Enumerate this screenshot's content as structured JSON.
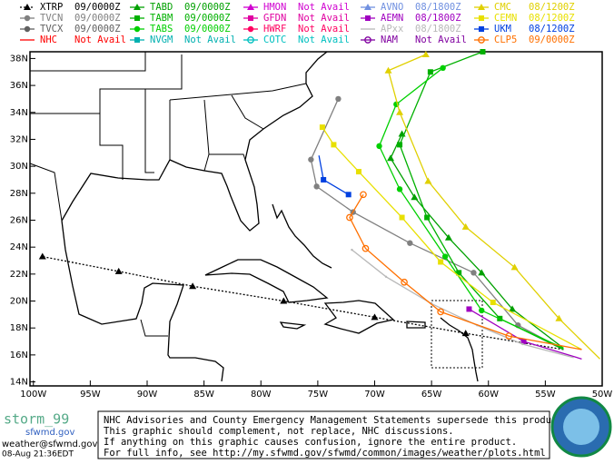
{
  "map": {
    "xlim": [
      -100.3,
      -50
    ],
    "ylim": [
      13.7,
      38.5
    ],
    "xticks": [
      {
        "value": -100,
        "label": "100W"
      },
      {
        "value": -95,
        "label": "95W"
      },
      {
        "value": -90,
        "label": "90W"
      },
      {
        "value": -85,
        "label": "85W"
      },
      {
        "value": -80,
        "label": "80W"
      },
      {
        "value": -75,
        "label": "75W"
      },
      {
        "value": -70,
        "label": "70W"
      },
      {
        "value": -65,
        "label": "65W"
      },
      {
        "value": -60,
        "label": "60W"
      },
      {
        "value": -55,
        "label": "55W"
      },
      {
        "value": -50,
        "label": "50W"
      }
    ],
    "yticks": [
      {
        "value": 14,
        "label": "14N"
      },
      {
        "value": 16,
        "label": "16N"
      },
      {
        "value": 18,
        "label": "18N"
      },
      {
        "value": 20,
        "label": "20N"
      },
      {
        "value": 22,
        "label": "22N"
      },
      {
        "value": 24,
        "label": "24N"
      },
      {
        "value": 26,
        "label": "26N"
      },
      {
        "value": 28,
        "label": "28N"
      },
      {
        "value": 30,
        "label": "30N"
      },
      {
        "value": 32,
        "label": "32N"
      },
      {
        "value": 34,
        "label": "34N"
      },
      {
        "value": 36,
        "label": "36N"
      },
      {
        "value": 38,
        "label": "38N"
      }
    ],
    "legend": [
      {
        "name": "XTRP",
        "status": "09/0000Z",
        "color": "#000000",
        "marker": "triangle",
        "style": "dotted",
        "lon": [
          -53.4,
          -62,
          -70,
          -78,
          -86,
          -92.5,
          -99.2
        ],
        "lat": [
          16.4,
          17.6,
          18.8,
          20,
          21.1,
          22.2,
          23.3
        ]
      },
      {
        "name": "TVCN",
        "status": "09/0000Z",
        "color": "#808080",
        "marker": "circle",
        "style": "solid",
        "lon": [
          -53.4,
          -57.4,
          -61.3,
          -66.9,
          -71.9,
          -75.1,
          -75.6,
          -73.2
        ],
        "lat": [
          16.4,
          18.2,
          22.1,
          24.3,
          26.6,
          28.5,
          30.5,
          35
        ]
      },
      {
        "name": "TVCX",
        "status": "09/0000Z",
        "color": "#606060",
        "marker": "circle",
        "style": "solid"
      },
      {
        "name": "NHC",
        "status": "Not Avail",
        "color": "#ff0000",
        "marker": "none",
        "style": "solid"
      },
      {
        "name": "TABD",
        "status": "09/0000Z",
        "color": "#00a000",
        "marker": "triangle",
        "style": "solid",
        "lon": [
          -53.4,
          -57.9,
          -60.6,
          -63.5,
          -66.5,
          -68.6,
          -67.6
        ],
        "lat": [
          16.5,
          19.4,
          22.1,
          24.7,
          27.7,
          30.6,
          32.4
        ]
      },
      {
        "name": "TABM",
        "status": "09/0000Z",
        "color": "#00b000",
        "marker": "square",
        "style": "solid",
        "lon": [
          -53.4,
          -59,
          -62.6,
          -65.4,
          -67.8,
          -65.1,
          -60.5
        ],
        "lat": [
          16.4,
          18.7,
          22.1,
          26.2,
          31.6,
          37,
          38.5
        ]
      },
      {
        "name": "TABS",
        "status": "09/0000Z",
        "color": "#00d000",
        "marker": "circle",
        "style": "solid",
        "lon": [
          -53.4,
          -60.6,
          -63.8,
          -67.8,
          -69.6,
          -68.1,
          -64
        ],
        "lat": [
          16.5,
          19.3,
          23.3,
          28.3,
          31.5,
          34.6,
          37.3
        ]
      },
      {
        "name": "NVGM",
        "status": "Not Avail",
        "color": "#00b0b0",
        "marker": "square",
        "style": "solid"
      },
      {
        "name": "HMON",
        "status": "Not Avail",
        "color": "#d000d0",
        "marker": "triangle",
        "style": "solid"
      },
      {
        "name": "GFDN",
        "status": "Not Avail",
        "color": "#e000a0",
        "marker": "square",
        "style": "solid"
      },
      {
        "name": "HWRF",
        "status": "Not Avail",
        "color": "#ff0060",
        "marker": "circle",
        "style": "solid"
      },
      {
        "name": "COTC",
        "status": "Not Avail",
        "color": "#00c0c0",
        "marker": "ring",
        "style": "solid"
      },
      {
        "name": "AVNO",
        "status": "08/1800Z",
        "color": "#7090e0",
        "marker": "triangle",
        "style": "solid"
      },
      {
        "name": "AEMN",
        "status": "08/1800Z",
        "color": "#a000c0",
        "marker": "square",
        "style": "solid",
        "lon": [
          -51.8,
          -56.9,
          -61.7
        ],
        "lat": [
          15.7,
          17,
          19.4
        ]
      },
      {
        "name": "APxx",
        "status": "08/1800Z",
        "color": "#b8b8b8",
        "marker": "none",
        "style": "solid",
        "lon": [
          -52.5,
          -57,
          -61,
          -65,
          -69,
          -72
        ],
        "lat": [
          15.8,
          16.8,
          18.2,
          19.8,
          21.8,
          23.8
        ]
      },
      {
        "name": "NAM",
        "status": "Not Avail",
        "color": "#8000a0",
        "marker": "ring",
        "style": "solid"
      },
      {
        "name": "CMC",
        "status": "08/1200Z",
        "color": "#e0d000",
        "marker": "triangle",
        "style": "solid",
        "lon": [
          -50.2,
          -53.8,
          -57.7,
          -62,
          -65.3,
          -67.8,
          -68.8,
          -65.5
        ],
        "lat": [
          15.7,
          18.7,
          22.5,
          25.5,
          28.9,
          34,
          37.1,
          38.3
        ]
      },
      {
        "name": "CEMN",
        "status": "08/1200Z",
        "color": "#e8e000",
        "marker": "square",
        "style": "solid",
        "lon": [
          -51.8,
          -59.6,
          -64.2,
          -67.6,
          -71.4,
          -73.6,
          -74.6
        ],
        "lat": [
          16.4,
          19.9,
          22.9,
          26.2,
          29.6,
          31.6,
          32.9
        ]
      },
      {
        "name": "UKM",
        "status": "08/1200Z",
        "color": "#0040e0",
        "marker": "square",
        "style": "solid",
        "lon": [
          -74.9,
          -74.5,
          -72.3
        ],
        "lat": [
          30.8,
          29,
          27.9
        ]
      },
      {
        "name": "CLP5",
        "status": "09/0000Z",
        "color": "#ff7000",
        "marker": "ring",
        "style": "solid",
        "lon": [
          -51.8,
          -58.2,
          -64.2,
          -67.4,
          -70.8,
          -72.2,
          -71
        ],
        "lat": [
          16.4,
          17.4,
          19.2,
          21.4,
          23.9,
          26.2,
          27.9
        ]
      }
    ]
  },
  "footer": {
    "logo": "storm_99",
    "site": "sfwmd.gov",
    "email": "weather@sfwmd.gov",
    "time": "08-Aug 21:36EDT",
    "notice": [
      "NHC Advisories and County Emergency Management Statements supersede this product.",
      "This graphic should complement, not replace, NHC discussions.",
      "If anything on this graphic causes confusion, ignore the entire product.",
      "For full info, see  http://my.sfwmd.gov/sfwmd/common/images/weather/plots.html"
    ]
  }
}
